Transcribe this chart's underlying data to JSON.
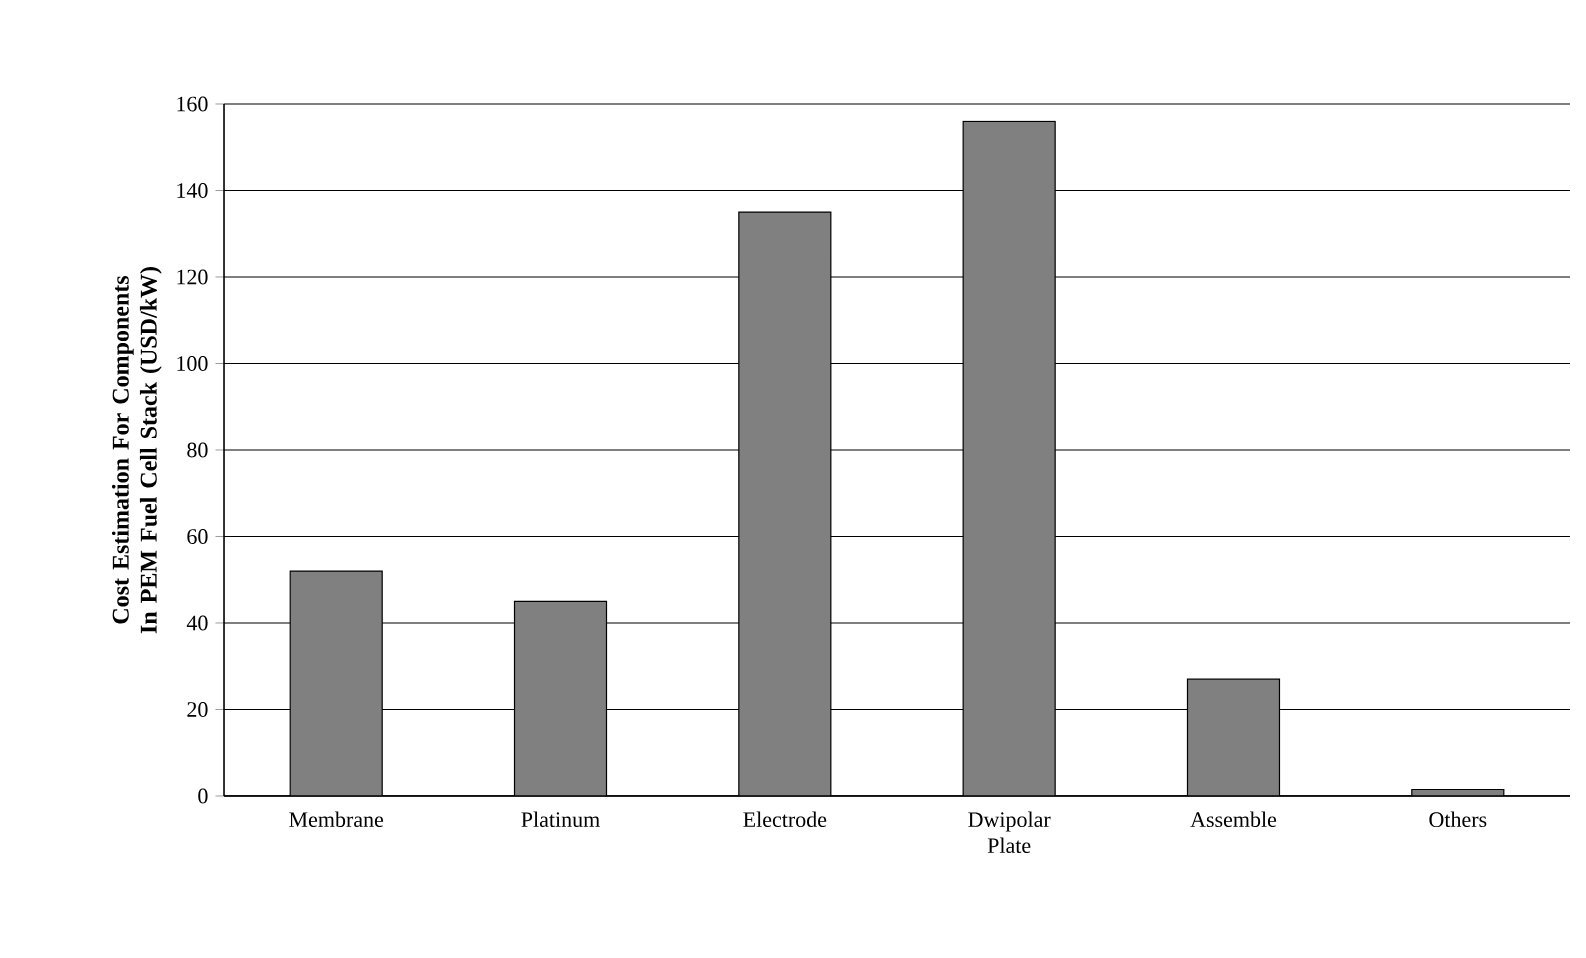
{
  "chart_data": {
    "type": "bar",
    "ylabel": "Cost Estimation For Components In PEM Fuel Cell Stack (USD/kW)",
    "categories": [
      "Membrane",
      "Platinum",
      "Electrode",
      "Dwipolar Plate",
      "Assemble",
      "Others"
    ],
    "values": [
      52,
      45,
      135,
      156,
      27,
      1.5
    ],
    "color": "#808080",
    "ylim": [
      0,
      160
    ],
    "yticks": [
      0,
      20,
      40,
      60,
      80,
      100,
      120,
      140,
      160
    ],
    "grid": "y"
  }
}
